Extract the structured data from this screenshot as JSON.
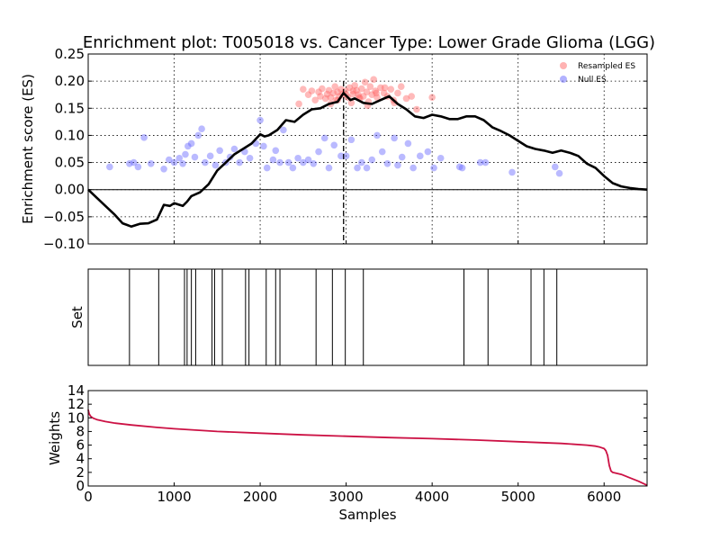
{
  "chart_data": [
    {
      "panel": "enrichment",
      "type": "line",
      "title": "Enrichment plot: T005018 vs. Cancer Type: Lower Grade Glioma (LGG)",
      "xlabel": "",
      "ylabel": "Enrichment score (ES)",
      "xlim": [
        0,
        6500
      ],
      "ylim": [
        -0.1,
        0.25
      ],
      "yticks": [
        -0.1,
        -0.05,
        0.0,
        0.05,
        0.1,
        0.15,
        0.2,
        0.25
      ],
      "ytick_labels": [
        "−0.10",
        "−0.05",
        "0.00",
        "0.05",
        "0.10",
        "0.15",
        "0.20",
        "0.25"
      ],
      "xgrid": [
        1000,
        2000,
        3000,
        4000,
        5000,
        6000
      ],
      "grid": true,
      "legend_position": "top-right",
      "legend": [
        {
          "label": "Resampled ES",
          "color": "#ff6666"
        },
        {
          "label": "Null ES",
          "color": "#6666ff"
        }
      ],
      "peak_x": 2970,
      "es_curve": {
        "x": [
          0,
          100,
          200,
          300,
          400,
          450,
          500,
          600,
          700,
          800,
          880,
          950,
          1000,
          1100,
          1150,
          1200,
          1300,
          1400,
          1500,
          1600,
          1700,
          1800,
          1900,
          2000,
          2050,
          2100,
          2200,
          2300,
          2400,
          2500,
          2600,
          2700,
          2800,
          2900,
          2970,
          3050,
          3100,
          3200,
          3300,
          3400,
          3500,
          3600,
          3700,
          3800,
          3900,
          4000,
          4100,
          4200,
          4300,
          4400,
          4500,
          4600,
          4700,
          4800,
          4900,
          5000,
          5100,
          5200,
          5300,
          5400,
          5500,
          5600,
          5700,
          5800,
          5900,
          6000,
          6100,
          6200,
          6300,
          6400,
          6500
        ],
        "y": [
          0.0,
          -0.015,
          -0.03,
          -0.045,
          -0.062,
          -0.065,
          -0.068,
          -0.063,
          -0.062,
          -0.055,
          -0.028,
          -0.03,
          -0.025,
          -0.03,
          -0.022,
          -0.012,
          -0.005,
          0.01,
          0.035,
          0.05,
          0.065,
          0.075,
          0.085,
          0.102,
          0.098,
          0.1,
          0.11,
          0.128,
          0.125,
          0.138,
          0.148,
          0.15,
          0.158,
          0.162,
          0.178,
          0.165,
          0.168,
          0.16,
          0.158,
          0.165,
          0.172,
          0.158,
          0.148,
          0.135,
          0.132,
          0.138,
          0.135,
          0.13,
          0.13,
          0.135,
          0.135,
          0.128,
          0.115,
          0.108,
          0.1,
          0.09,
          0.08,
          0.075,
          0.072,
          0.068,
          0.072,
          0.068,
          0.062,
          0.048,
          0.04,
          0.025,
          0.012,
          0.006,
          0.003,
          0.001,
          0.0
        ]
      },
      "resampled_es": {
        "x": [
          2450,
          2500,
          2560,
          2600,
          2640,
          2680,
          2700,
          2720,
          2760,
          2780,
          2800,
          2820,
          2850,
          2870,
          2880,
          2900,
          2920,
          2940,
          2960,
          2990,
          3020,
          3040,
          3060,
          3080,
          3100,
          3120,
          3140,
          3160,
          3180,
          3200,
          3220,
          3240,
          3260,
          3280,
          3300,
          3320,
          3340,
          3360,
          3400,
          3440,
          3480,
          3520,
          3560,
          3600,
          3640,
          3700,
          3760,
          3820,
          4000,
          2820,
          2900,
          3000,
          3080,
          3150,
          3250,
          3350,
          3450,
          3550
        ],
        "y": [
          0.158,
          0.185,
          0.175,
          0.182,
          0.165,
          0.18,
          0.172,
          0.186,
          0.168,
          0.176,
          0.183,
          0.17,
          0.178,
          0.19,
          0.165,
          0.18,
          0.172,
          0.185,
          0.176,
          0.182,
          0.17,
          0.188,
          0.16,
          0.176,
          0.192,
          0.183,
          0.175,
          0.168,
          0.186,
          0.172,
          0.198,
          0.18,
          0.162,
          0.19,
          0.175,
          0.203,
          0.182,
          0.17,
          0.188,
          0.178,
          0.172,
          0.185,
          0.16,
          0.178,
          0.19,
          0.168,
          0.172,
          0.148,
          0.17,
          0.158,
          0.165,
          0.175,
          0.182,
          0.17,
          0.155,
          0.178,
          0.188,
          0.165
        ],
        "color": "#ff6666"
      },
      "null_es": {
        "x": [
          250,
          480,
          530,
          580,
          650,
          730,
          880,
          940,
          1000,
          1060,
          1100,
          1130,
          1160,
          1200,
          1240,
          1280,
          1320,
          1360,
          1420,
          1480,
          1530,
          1600,
          1650,
          1700,
          1760,
          1820,
          1880,
          1950,
          2000,
          2040,
          2080,
          2150,
          2180,
          2230,
          2270,
          2330,
          2380,
          2440,
          2500,
          2560,
          2620,
          2680,
          2750,
          2800,
          2860,
          2940,
          3000,
          3060,
          3130,
          3180,
          3240,
          3300,
          3360,
          3420,
          3480,
          3560,
          3600,
          3650,
          3720,
          3780,
          3860,
          3950,
          4020,
          4100,
          4320,
          4350,
          4560,
          4620,
          4930,
          5430,
          5480
        ],
        "y": [
          0.042,
          0.048,
          0.05,
          0.042,
          0.096,
          0.048,
          0.038,
          0.055,
          0.05,
          0.058,
          0.048,
          0.065,
          0.08,
          0.085,
          0.06,
          0.1,
          0.112,
          0.05,
          0.062,
          0.045,
          0.072,
          0.05,
          0.06,
          0.075,
          0.05,
          0.07,
          0.058,
          0.085,
          0.128,
          0.08,
          0.04,
          0.055,
          0.072,
          0.05,
          0.11,
          0.05,
          0.04,
          0.058,
          0.05,
          0.055,
          0.048,
          0.07,
          0.095,
          0.04,
          0.082,
          0.062,
          0.062,
          0.092,
          0.04,
          0.05,
          0.04,
          0.055,
          0.1,
          0.07,
          0.048,
          0.095,
          0.045,
          0.06,
          0.085,
          0.04,
          0.062,
          0.07,
          0.04,
          0.058,
          0.042,
          0.04,
          0.05,
          0.05,
          0.032,
          0.042,
          0.03
        ],
        "color": "#6666ff"
      }
    },
    {
      "panel": "set",
      "type": "rug",
      "ylabel": "Set",
      "xlim": [
        0,
        6500
      ],
      "positions": [
        480,
        820,
        1120,
        1150,
        1200,
        1250,
        1440,
        1470,
        1560,
        1830,
        1870,
        2070,
        2180,
        2230,
        2650,
        2840,
        2990,
        3200,
        4370,
        4650,
        5150,
        5300,
        5450
      ]
    },
    {
      "panel": "weights",
      "type": "line",
      "xlabel": "Samples",
      "ylabel": "Weights",
      "xlim": [
        0,
        6500
      ],
      "ylim": [
        0,
        14
      ],
      "xticks": [
        0,
        1000,
        2000,
        3000,
        4000,
        5000,
        6000
      ],
      "yticks": [
        0,
        2,
        4,
        6,
        8,
        10,
        12,
        14
      ],
      "color": "#cc1144",
      "x": [
        0,
        10,
        30,
        60,
        100,
        200,
        300,
        500,
        800,
        1000,
        1500,
        2000,
        2500,
        3000,
        3500,
        4000,
        4500,
        5000,
        5500,
        5800,
        5900,
        5950,
        6000,
        6020,
        6040,
        6060,
        6080,
        6100,
        6200,
        6300,
        6400,
        6500
      ],
      "y": [
        11.2,
        10.6,
        10.2,
        9.95,
        9.75,
        9.45,
        9.25,
        8.95,
        8.6,
        8.4,
        8.0,
        7.75,
        7.5,
        7.3,
        7.1,
        6.95,
        6.75,
        6.5,
        6.25,
        6.0,
        5.85,
        5.7,
        5.5,
        5.2,
        4.5,
        3.0,
        2.2,
        2.0,
        1.7,
        1.2,
        0.7,
        0.1
      ]
    }
  ]
}
